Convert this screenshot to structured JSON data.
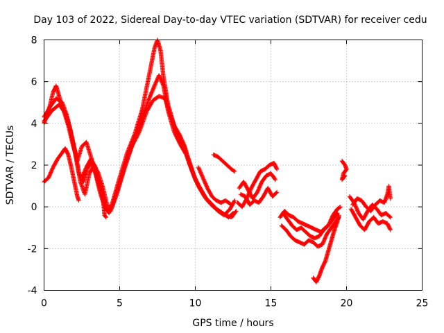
{
  "chart_data": {
    "type": "scatter",
    "title": "Day 103 of 2022, Sidereal Day-to-day VTEC variation (SDTVAR) for receiver cedu",
    "xlabel": "GPS time / hours",
    "ylabel": "SDTVAR / TECUs",
    "xlim": [
      0,
      25
    ],
    "ylim": [
      -4,
      8
    ],
    "xticks": [
      0,
      5,
      10,
      15,
      20,
      25
    ],
    "yticks": [
      -4,
      -2,
      0,
      2,
      4,
      6,
      8
    ],
    "xtick_labels": [
      "0",
      "5",
      "10",
      "15",
      "20",
      "25"
    ],
    "ytick_labels": [
      "-4",
      "-2",
      "0",
      "2",
      "4",
      "6",
      "8"
    ],
    "grid": true,
    "marker": "+",
    "color": "#ff0000",
    "series": [
      {
        "name": "trace-a",
        "points": [
          [
            0.0,
            4.0
          ],
          [
            0.3,
            4.6
          ],
          [
            0.6,
            5.5
          ],
          [
            0.8,
            5.8
          ],
          [
            1.0,
            5.3
          ],
          [
            1.3,
            4.6
          ],
          [
            1.6,
            3.9
          ],
          [
            1.9,
            3.0
          ],
          [
            2.2,
            2.2
          ],
          [
            2.5,
            2.9
          ],
          [
            2.8,
            3.1
          ],
          [
            3.1,
            2.4
          ],
          [
            3.4,
            1.6
          ],
          [
            3.7,
            0.7
          ],
          [
            4.0,
            0.0
          ],
          [
            4.3,
            -0.3
          ],
          [
            4.6,
            0.4
          ],
          [
            5.0,
            1.4
          ],
          [
            5.5,
            2.6
          ],
          [
            6.0,
            3.5
          ],
          [
            6.5,
            4.7
          ],
          [
            7.0,
            6.5
          ],
          [
            7.3,
            7.6
          ],
          [
            7.5,
            8.0
          ],
          [
            7.7,
            7.5
          ],
          [
            7.9,
            6.2
          ],
          [
            8.2,
            4.9
          ],
          [
            8.6,
            3.9
          ],
          [
            9.0,
            3.4
          ],
          [
            9.3,
            2.9
          ],
          [
            9.6,
            2.1
          ],
          [
            9.9,
            1.5
          ],
          [
            10.3,
            0.9
          ],
          [
            10.7,
            0.4
          ],
          [
            11.1,
            0.1
          ],
          [
            11.5,
            -0.2
          ],
          [
            11.9,
            -0.4
          ],
          [
            12.3,
            -0.1
          ],
          [
            12.6,
            0.3
          ]
        ]
      },
      {
        "name": "trace-b",
        "points": [
          [
            0.0,
            4.3
          ],
          [
            0.4,
            4.8
          ],
          [
            0.8,
            5.2
          ],
          [
            1.2,
            5.0
          ],
          [
            1.5,
            4.4
          ],
          [
            1.8,
            3.5
          ],
          [
            2.1,
            2.5
          ],
          [
            2.4,
            1.2
          ],
          [
            2.7,
            0.6
          ],
          [
            3.0,
            1.6
          ],
          [
            3.3,
            2.0
          ],
          [
            3.6,
            1.6
          ],
          [
            3.9,
            0.9
          ],
          [
            4.2,
            0.0
          ],
          [
            4.5,
            0.0
          ],
          [
            4.9,
            0.9
          ],
          [
            5.4,
            2.1
          ],
          [
            5.9,
            3.1
          ],
          [
            6.4,
            4.1
          ],
          [
            6.9,
            5.1
          ],
          [
            7.3,
            5.8
          ],
          [
            7.6,
            6.3
          ],
          [
            7.9,
            5.8
          ],
          [
            8.2,
            4.6
          ],
          [
            8.6,
            3.6
          ],
          [
            9.0,
            3.0
          ],
          [
            9.4,
            2.5
          ],
          [
            9.8,
            1.7
          ],
          [
            10.2,
            1.0
          ],
          [
            10.6,
            0.5
          ],
          [
            11.0,
            0.2
          ],
          [
            11.4,
            -0.1
          ],
          [
            11.8,
            -0.3
          ],
          [
            12.2,
            -0.5
          ],
          [
            12.5,
            -0.3
          ]
        ]
      },
      {
        "name": "trace-c",
        "points": [
          [
            0.0,
            4.1
          ],
          [
            0.5,
            4.6
          ],
          [
            1.0,
            4.9
          ],
          [
            1.4,
            4.5
          ],
          [
            1.7,
            3.8
          ],
          [
            2.0,
            2.8
          ],
          [
            2.3,
            1.6
          ],
          [
            2.6,
            1.2
          ],
          [
            2.9,
            1.9
          ],
          [
            3.2,
            2.1
          ],
          [
            3.5,
            1.4
          ],
          [
            3.8,
            0.6
          ],
          [
            4.1,
            -0.1
          ],
          [
            4.4,
            -0.2
          ],
          [
            4.8,
            0.6
          ],
          [
            5.3,
            1.8
          ],
          [
            5.8,
            2.9
          ],
          [
            6.3,
            3.6
          ],
          [
            6.8,
            4.6
          ],
          [
            7.2,
            5.1
          ],
          [
            7.6,
            5.3
          ],
          [
            8.0,
            5.2
          ],
          [
            8.4,
            4.3
          ],
          [
            8.8,
            3.5
          ],
          [
            9.2,
            3.0
          ],
          [
            9.6,
            2.2
          ],
          [
            10.0,
            1.3
          ],
          [
            10.4,
            0.8
          ],
          [
            10.8,
            0.3
          ],
          [
            11.2,
            0.0
          ],
          [
            11.6,
            -0.2
          ],
          [
            12.0,
            -0.4
          ],
          [
            12.4,
            -0.5
          ],
          [
            12.7,
            -0.2
          ]
        ]
      },
      {
        "name": "trace-d",
        "points": [
          [
            0.0,
            1.2
          ],
          [
            0.3,
            1.4
          ],
          [
            0.6,
            1.9
          ],
          [
            0.9,
            2.3
          ],
          [
            1.2,
            2.6
          ],
          [
            1.4,
            2.8
          ],
          [
            1.6,
            2.5
          ],
          [
            1.8,
            1.9
          ],
          [
            2.0,
            1.2
          ],
          [
            2.2,
            0.5
          ],
          [
            2.3,
            0.3
          ]
        ]
      },
      {
        "name": "trace-e",
        "points": [
          [
            2.5,
            1.4
          ],
          [
            2.8,
            1.9
          ],
          [
            3.1,
            2.3
          ],
          [
            3.4,
            1.9
          ],
          [
            3.7,
            1.1
          ],
          [
            3.9,
            0.4
          ],
          [
            4.0,
            -0.4
          ],
          [
            4.1,
            -0.5
          ]
        ]
      },
      {
        "name": "trace-f",
        "points": [
          [
            10.2,
            1.9
          ],
          [
            10.5,
            1.4
          ],
          [
            10.8,
            0.9
          ],
          [
            11.1,
            0.5
          ],
          [
            11.4,
            0.3
          ],
          [
            11.7,
            0.2
          ],
          [
            12.0,
            0.3
          ],
          [
            12.4,
            0.1
          ]
        ]
      },
      {
        "name": "trace-g",
        "points": [
          [
            11.2,
            2.5
          ],
          [
            11.5,
            2.4
          ],
          [
            11.8,
            2.2
          ],
          [
            12.1,
            2.0
          ],
          [
            12.4,
            1.8
          ],
          [
            12.6,
            1.7
          ]
        ]
      },
      {
        "name": "trace-h",
        "points": [
          [
            12.8,
            0.2
          ],
          [
            13.1,
            0.0
          ],
          [
            13.4,
            0.4
          ],
          [
            13.7,
            0.9
          ],
          [
            14.0,
            1.3
          ],
          [
            14.3,
            1.7
          ],
          [
            14.6,
            1.8
          ],
          [
            14.9,
            2.0
          ],
          [
            15.2,
            2.1
          ],
          [
            15.4,
            1.8
          ]
        ]
      },
      {
        "name": "trace-i",
        "points": [
          [
            12.9,
            0.9
          ],
          [
            13.2,
            1.2
          ],
          [
            13.5,
            0.8
          ],
          [
            13.8,
            0.4
          ],
          [
            14.1,
            0.7
          ],
          [
            14.4,
            1.2
          ],
          [
            14.7,
            1.5
          ],
          [
            15.0,
            1.6
          ],
          [
            15.3,
            1.3
          ]
        ]
      },
      {
        "name": "trace-j",
        "points": [
          [
            13.0,
            0.6
          ],
          [
            13.3,
            0.5
          ],
          [
            13.6,
            0.1
          ],
          [
            13.9,
            0.3
          ],
          [
            14.2,
            0.2
          ],
          [
            14.5,
            0.5
          ],
          [
            14.8,
            0.9
          ],
          [
            15.1,
            0.5
          ],
          [
            15.4,
            0.7
          ]
        ]
      },
      {
        "name": "trace-k",
        "points": [
          [
            15.6,
            -0.5
          ],
          [
            15.9,
            -0.2
          ],
          [
            16.2,
            -0.4
          ],
          [
            16.5,
            -0.5
          ],
          [
            16.8,
            -0.7
          ],
          [
            17.1,
            -0.8
          ],
          [
            17.4,
            -0.9
          ],
          [
            17.7,
            -1.0
          ],
          [
            18.0,
            -1.1
          ],
          [
            18.3,
            -1.2
          ],
          [
            18.6,
            -1.0
          ],
          [
            18.9,
            -0.8
          ],
          [
            19.2,
            -0.5
          ],
          [
            19.4,
            -0.3
          ]
        ]
      },
      {
        "name": "trace-l",
        "points": [
          [
            15.7,
            -0.9
          ],
          [
            16.0,
            -1.1
          ],
          [
            16.3,
            -1.4
          ],
          [
            16.6,
            -1.6
          ],
          [
            16.9,
            -1.7
          ],
          [
            17.2,
            -1.8
          ],
          [
            17.5,
            -1.6
          ],
          [
            17.8,
            -1.7
          ],
          [
            18.1,
            -1.9
          ],
          [
            18.4,
            -1.8
          ],
          [
            18.7,
            -1.3
          ],
          [
            19.0,
            -1.0
          ],
          [
            19.3,
            -0.7
          ],
          [
            19.5,
            -0.5
          ]
        ]
      },
      {
        "name": "trace-m",
        "points": [
          [
            15.8,
            -0.3
          ],
          [
            16.1,
            -0.6
          ],
          [
            16.4,
            -0.9
          ],
          [
            16.7,
            -1.1
          ],
          [
            17.0,
            -1.0
          ],
          [
            17.3,
            -1.2
          ],
          [
            17.6,
            -1.4
          ],
          [
            17.9,
            -1.5
          ],
          [
            18.2,
            -1.4
          ],
          [
            18.5,
            -1.1
          ],
          [
            18.8,
            -0.9
          ],
          [
            19.1,
            -0.4
          ],
          [
            19.4,
            -0.1
          ],
          [
            19.6,
            0.0
          ]
        ]
      },
      {
        "name": "trace-n",
        "points": [
          [
            17.8,
            -3.4
          ],
          [
            18.0,
            -3.6
          ],
          [
            18.2,
            -3.3
          ],
          [
            18.4,
            -2.9
          ],
          [
            18.6,
            -2.6
          ],
          [
            18.8,
            -2.1
          ],
          [
            19.0,
            -1.6
          ],
          [
            19.2,
            -1.1
          ],
          [
            19.4,
            -0.7
          ],
          [
            19.5,
            -0.4
          ]
        ]
      },
      {
        "name": "trace-o",
        "points": [
          [
            19.7,
            2.2
          ],
          [
            19.9,
            2.0
          ],
          [
            20.0,
            1.8
          ],
          [
            19.8,
            1.6
          ],
          [
            19.7,
            1.3
          ],
          [
            19.9,
            1.5
          ]
        ]
      },
      {
        "name": "trace-p",
        "points": [
          [
            20.2,
            0.5
          ],
          [
            20.5,
            0.2
          ],
          [
            20.8,
            -0.3
          ],
          [
            21.1,
            -0.6
          ],
          [
            21.4,
            -0.2
          ],
          [
            21.7,
            0.1
          ],
          [
            22.0,
            -0.1
          ],
          [
            22.3,
            -0.4
          ],
          [
            22.6,
            -0.3
          ],
          [
            22.9,
            -0.5
          ]
        ]
      },
      {
        "name": "trace-q",
        "points": [
          [
            20.3,
            -0.1
          ],
          [
            20.6,
            -0.5
          ],
          [
            20.9,
            -0.9
          ],
          [
            21.2,
            -1.1
          ],
          [
            21.5,
            -0.7
          ],
          [
            21.8,
            -0.5
          ],
          [
            22.1,
            -0.8
          ],
          [
            22.4,
            -0.7
          ],
          [
            22.7,
            -0.8
          ],
          [
            22.9,
            -1.1
          ]
        ]
      },
      {
        "name": "trace-r",
        "points": [
          [
            20.4,
            0.1
          ],
          [
            20.7,
            0.4
          ],
          [
            21.0,
            0.3
          ],
          [
            21.3,
            0.0
          ],
          [
            21.6,
            -0.2
          ],
          [
            21.9,
            0.1
          ],
          [
            22.2,
            0.3
          ],
          [
            22.5,
            0.2
          ],
          [
            22.7,
            0.6
          ],
          [
            22.8,
            1.0
          ],
          [
            22.9,
            0.4
          ]
        ]
      }
    ]
  }
}
